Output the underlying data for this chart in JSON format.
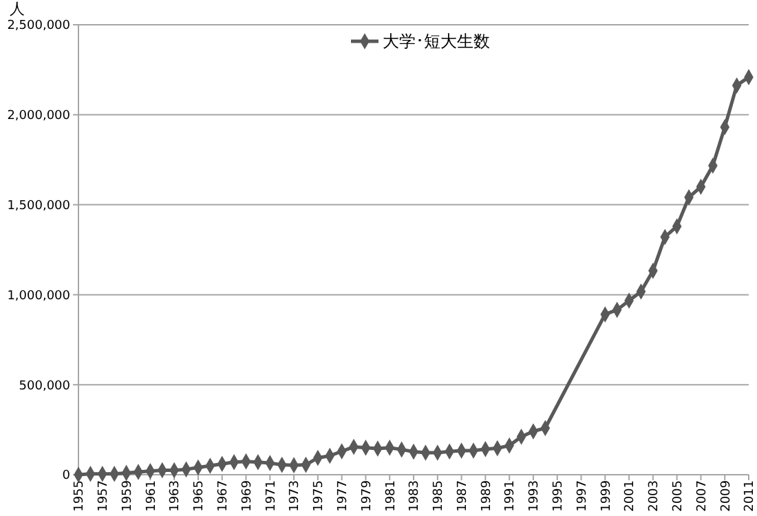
{
  "chart_data": {
    "type": "line",
    "ylabel": "人",
    "x": [
      1955,
      1956,
      1957,
      1958,
      1959,
      1960,
      1961,
      1962,
      1963,
      1964,
      1965,
      1966,
      1967,
      1968,
      1969,
      1970,
      1971,
      1972,
      1973,
      1974,
      1975,
      1976,
      1977,
      1978,
      1979,
      1980,
      1981,
      1982,
      1983,
      1984,
      1985,
      1986,
      1987,
      1988,
      1989,
      1990,
      1991,
      1992,
      1993,
      1994,
      1999,
      2000,
      2001,
      2002,
      2003,
      2004,
      2005,
      2006,
      2007,
      2008,
      2009,
      2010,
      2011
    ],
    "series": [
      {
        "name": "大学･短大生数",
        "color": "#595959",
        "values": [
          0,
          5000,
          5000,
          5000,
          10000,
          15000,
          20000,
          25000,
          25000,
          30000,
          40000,
          50000,
          60000,
          70000,
          74000,
          70000,
          65000,
          55000,
          53000,
          55000,
          94000,
          105000,
          130000,
          155000,
          150000,
          145000,
          150000,
          140000,
          128000,
          122000,
          122000,
          129000,
          134000,
          134000,
          142000,
          147000,
          162000,
          211000,
          241000,
          259000,
          891000,
          916000,
          967000,
          1018000,
          1133000,
          1321000,
          1380000,
          1541000,
          1600000,
          1717000,
          1931000,
          2163000,
          2209000
        ]
      }
    ],
    "xlim": [
      1955,
      2011
    ],
    "xticks": [
      1955,
      1957,
      1959,
      1961,
      1963,
      1965,
      1967,
      1969,
      1971,
      1973,
      1975,
      1977,
      1979,
      1981,
      1983,
      1985,
      1987,
      1989,
      1991,
      1993,
      1995,
      1997,
      1999,
      2001,
      2003,
      2005,
      2007,
      2009,
      2011
    ],
    "ylim": [
      0,
      2500000
    ],
    "yticks": [
      {
        "value": 0,
        "label": "0"
      },
      {
        "value": 500000,
        "label": "500,000"
      },
      {
        "value": 1000000,
        "label": "1,000,000"
      },
      {
        "value": 1500000,
        "label": "1,500,000"
      },
      {
        "value": 2000000,
        "label": "2,000,000"
      },
      {
        "value": 2500000,
        "label": "2,500,000"
      }
    ],
    "grid": "y",
    "legend": "top",
    "marker": "diamond",
    "line_style": "solid"
  }
}
